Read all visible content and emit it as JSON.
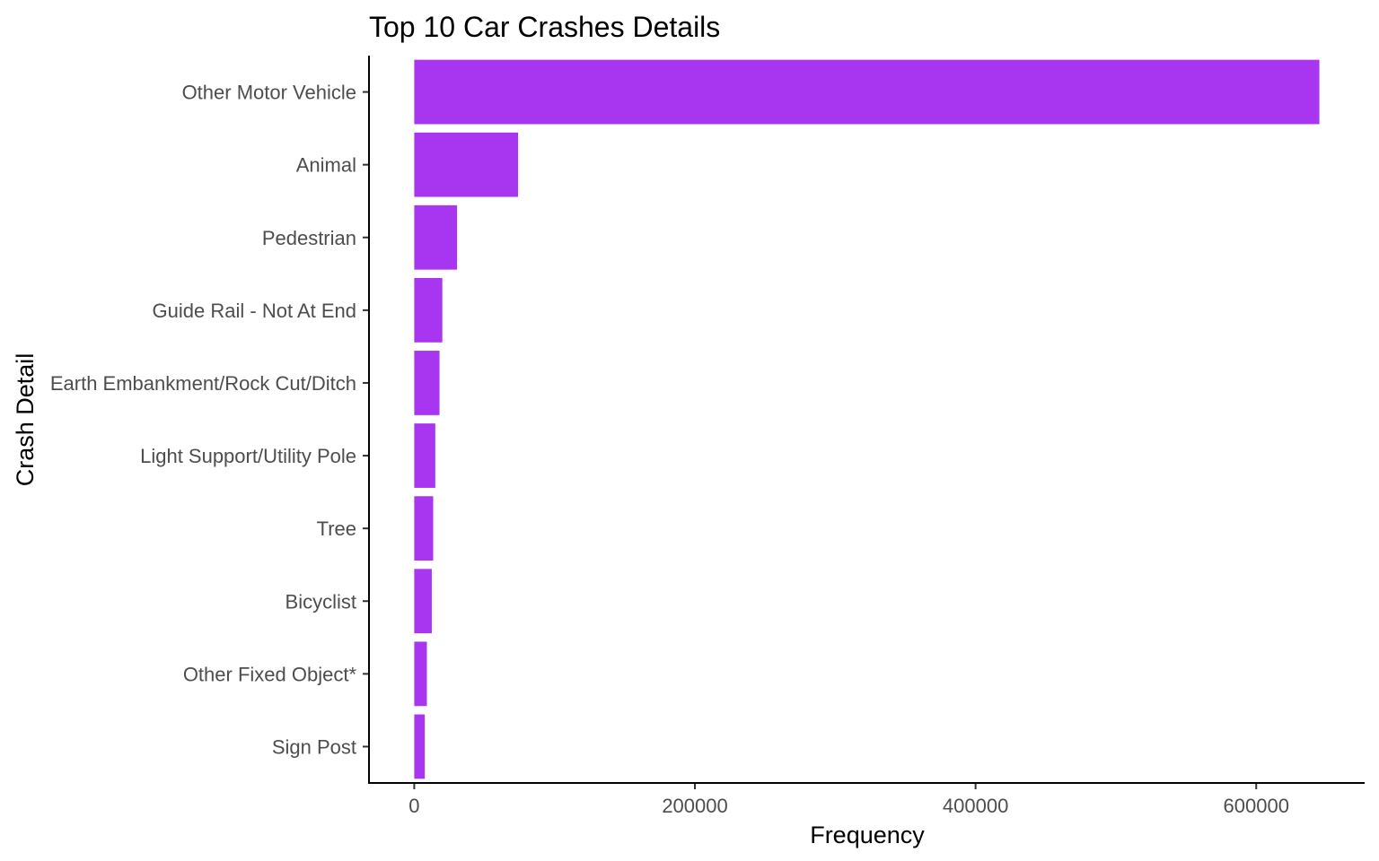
{
  "chart_data": {
    "type": "bar",
    "orientation": "horizontal",
    "title": "Top 10 Car Crashes Details",
    "xlabel": "Frequency",
    "ylabel": "Crash Detail",
    "categories": [
      "Other Motor Vehicle",
      "Animal",
      "Pedestrian",
      "Guide Rail - Not At End",
      "Earth Embankment/Rock Cut/Ditch",
      "Light Support/Utility Pole",
      "Tree",
      "Bicyclist",
      "Other Fixed Object*",
      "Sign Post"
    ],
    "values": [
      645000,
      74000,
      30500,
      20000,
      18000,
      15000,
      13500,
      12500,
      9000,
      7500
    ],
    "x_ticks": [
      0,
      200000,
      400000,
      600000
    ],
    "x_tick_labels": [
      "0",
      "200000",
      "400000",
      "600000"
    ],
    "xlim": [
      -32250,
      677250
    ],
    "bar_color": "#a836f0",
    "grid": false,
    "legend": "none"
  }
}
